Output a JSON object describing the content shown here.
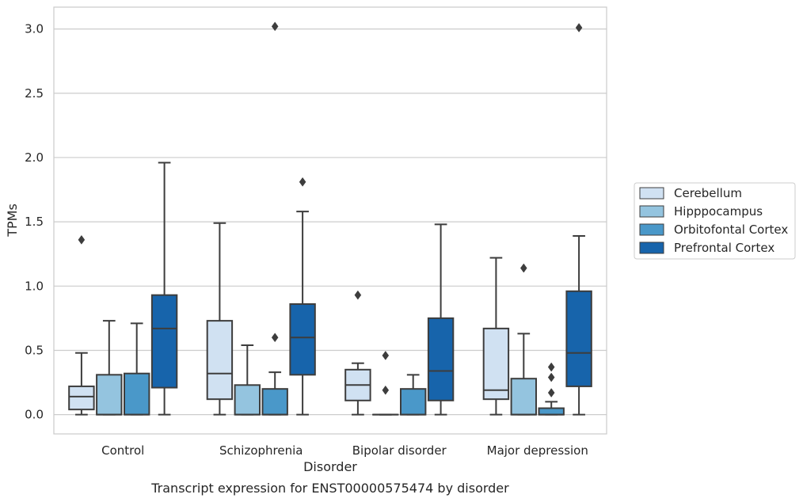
{
  "chart_data": {
    "type": "boxplot",
    "caption": "Transcript expression for ENST00000575474 by disorder",
    "xlabel": "Disorder",
    "ylabel": "TPMs",
    "categories": [
      "Control",
      "Schizophrenia",
      "Bipolar disorder",
      "Major depression"
    ],
    "yticks": [
      "0.0",
      "0.5",
      "1.0",
      "1.5",
      "2.0",
      "2.5",
      "3.0"
    ],
    "ylim": [
      -0.15,
      3.17
    ],
    "grid": "horizontal",
    "legend_position": "right",
    "series": [
      {
        "name": "Cerebellum",
        "color": "#d0e1f2",
        "boxes": [
          {
            "whislo": 0.0,
            "q1": 0.04,
            "med": 0.14,
            "q3": 0.22,
            "whishi": 0.48,
            "fliers": [
              1.36
            ]
          },
          {
            "whislo": 0.0,
            "q1": 0.12,
            "med": 0.32,
            "q3": 0.73,
            "whishi": 1.49,
            "fliers": []
          },
          {
            "whislo": 0.0,
            "q1": 0.11,
            "med": 0.23,
            "q3": 0.35,
            "whishi": 0.4,
            "fliers": [
              0.93
            ]
          },
          {
            "whislo": 0.0,
            "q1": 0.12,
            "med": 0.19,
            "q3": 0.67,
            "whishi": 1.22,
            "fliers": []
          }
        ]
      },
      {
        "name": "Hipppocampus",
        "color": "#94c4df",
        "boxes": [
          {
            "whislo": 0.0,
            "q1": 0.0,
            "med": 0.0,
            "q3": 0.31,
            "whishi": 0.73,
            "fliers": []
          },
          {
            "whislo": 0.0,
            "q1": 0.0,
            "med": 0.0,
            "q3": 0.23,
            "whishi": 0.54,
            "fliers": []
          },
          {
            "whislo": 0.0,
            "q1": 0.0,
            "med": 0.0,
            "q3": 0.0,
            "whishi": 0.0,
            "fliers": [
              0.19,
              0.46
            ]
          },
          {
            "whislo": 0.0,
            "q1": 0.0,
            "med": 0.0,
            "q3": 0.28,
            "whishi": 0.63,
            "fliers": [
              1.14
            ]
          }
        ]
      },
      {
        "name": "Orbitofontal Cortex",
        "color": "#4a98c9",
        "boxes": [
          {
            "whislo": 0.0,
            "q1": 0.0,
            "med": 0.0,
            "q3": 0.32,
            "whishi": 0.71,
            "fliers": []
          },
          {
            "whislo": 0.0,
            "q1": 0.0,
            "med": 0.0,
            "q3": 0.2,
            "whishi": 0.33,
            "fliers": [
              0.6,
              3.02
            ]
          },
          {
            "whislo": 0.0,
            "q1": 0.0,
            "med": 0.0,
            "q3": 0.2,
            "whishi": 0.31,
            "fliers": []
          },
          {
            "whislo": 0.0,
            "q1": 0.0,
            "med": 0.0,
            "q3": 0.05,
            "whishi": 0.1,
            "fliers": [
              0.17,
              0.29,
              0.37
            ]
          }
        ]
      },
      {
        "name": "Prefrontal Cortex",
        "color": "#1764ab",
        "boxes": [
          {
            "whislo": 0.0,
            "q1": 0.21,
            "med": 0.67,
            "q3": 0.93,
            "whishi": 1.96,
            "fliers": []
          },
          {
            "whislo": 0.0,
            "q1": 0.31,
            "med": 0.6,
            "q3": 0.86,
            "whishi": 1.58,
            "fliers": [
              1.81
            ]
          },
          {
            "whislo": 0.0,
            "q1": 0.11,
            "med": 0.34,
            "q3": 0.75,
            "whishi": 1.48,
            "fliers": []
          },
          {
            "whislo": 0.0,
            "q1": 0.22,
            "med": 0.48,
            "q3": 0.96,
            "whishi": 1.39,
            "fliers": [
              3.01
            ]
          }
        ]
      }
    ]
  }
}
